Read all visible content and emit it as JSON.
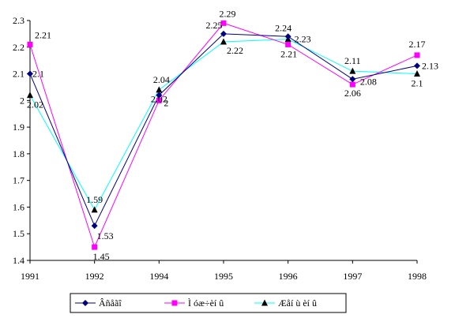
{
  "chart_data": {
    "type": "line",
    "categories": [
      "1991",
      "1992",
      "1994",
      "1995",
      "1996",
      "1997",
      "1998"
    ],
    "ylim": [
      1.4,
      2.3
    ],
    "yticks": [
      1.4,
      1.5,
      1.6,
      1.7,
      1.8,
      1.9,
      2,
      2.1,
      2.2,
      2.3
    ],
    "grid": false,
    "legend_position": "bottom",
    "series": [
      {
        "name": "Âñåãî",
        "color": "#000080",
        "marker": "diamond",
        "values": [
          2.1,
          1.53,
          2.02,
          2.25,
          2.24,
          2.08,
          2.13
        ],
        "labels": [
          "2.1",
          "1.53",
          "2.02",
          "2.25",
          "2.24",
          "2.08",
          "2.13"
        ]
      },
      {
        "name": "Ì óæ÷èí û",
        "color": "#ff00ff",
        "marker": "square",
        "values": [
          2.21,
          1.45,
          2.0,
          2.29,
          2.21,
          2.06,
          2.17
        ],
        "labels": [
          "2.21",
          "1.45",
          "2",
          "2.29",
          "2.21",
          "2.06",
          "2.17"
        ]
      },
      {
        "name": "Æåí ù èí û",
        "color": "#00ffff",
        "marker": "triangle",
        "values": [
          2.02,
          1.59,
          2.04,
          2.22,
          2.23,
          2.11,
          2.1
        ],
        "labels": [
          "2.02",
          "1.59",
          "2.04",
          "2.22",
          "2.23",
          "2.11",
          "2.1"
        ]
      }
    ]
  }
}
